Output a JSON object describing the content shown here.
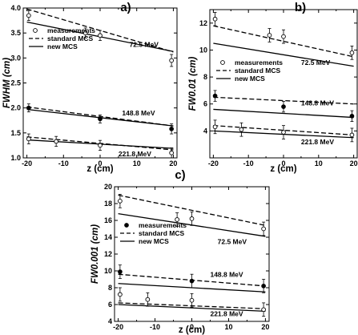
{
  "figure": {
    "panels": [
      "a)",
      "b)",
      "c)"
    ]
  },
  "chart_data": [
    {
      "type": "line",
      "panel_label": "a)",
      "xlabel": "z (cm)",
      "ylabel": "FWHM (cm)",
      "xlim": [
        -21,
        21
      ],
      "ylim": [
        1.0,
        4.0
      ],
      "xticks": [
        -20,
        -15,
        -10,
        -5,
        0,
        5,
        10,
        15,
        20
      ],
      "xticklabels": [
        "-20",
        "",
        "-10",
        "",
        "0",
        "",
        "10",
        "",
        "20"
      ],
      "yticks": [
        1.0,
        1.5,
        2.0,
        2.5,
        3.0,
        3.5,
        4.0
      ],
      "yticklabels": [
        "1.0",
        "1.5",
        "2.0",
        "2.5",
        "3.0",
        "3.5",
        "4.0"
      ],
      "legend": {
        "position": "upper-left",
        "entries": [
          {
            "label": "measurements",
            "marker": "open-circle"
          },
          {
            "label": "standard MCS",
            "style": "dashed"
          },
          {
            "label": "new MCS",
            "style": "solid"
          }
        ]
      },
      "annotations": [
        {
          "text": "72.5 MeV",
          "x": 8,
          "y": 3.22
        },
        {
          "text": "148.8 MeV",
          "x": 6,
          "y": 1.85
        },
        {
          "text": "221.8 MeV",
          "x": 5,
          "y": 1.03
        }
      ],
      "series": [
        {
          "name": "standard MCS",
          "energy": "72.5 MeV",
          "style": "dashed",
          "x": [
            -20,
            20
          ],
          "y": [
            3.98,
            3.12
          ]
        },
        {
          "name": "new MCS",
          "energy": "72.5 MeV",
          "style": "solid",
          "x": [
            -20,
            20
          ],
          "y": [
            3.72,
            3.13
          ]
        },
        {
          "name": "measurements",
          "energy": "72.5 MeV",
          "marker": "open",
          "x": [
            -19.5,
            -4,
            0,
            19.5
          ],
          "y": [
            3.85,
            3.5,
            3.45,
            2.95
          ],
          "err": [
            0.1,
            0.1,
            0.1,
            0.12
          ]
        },
        {
          "name": "standard MCS",
          "energy": "148.8 MeV",
          "style": "dashed",
          "x": [
            -20,
            20
          ],
          "y": [
            2.02,
            1.64
          ]
        },
        {
          "name": "new MCS",
          "energy": "148.8 MeV",
          "style": "solid",
          "x": [
            -20,
            20
          ],
          "y": [
            1.97,
            1.64
          ]
        },
        {
          "name": "measurements",
          "energy": "148.8 MeV",
          "marker": "filled",
          "x": [
            -19.5,
            0,
            19.5
          ],
          "y": [
            2.0,
            1.78,
            1.58
          ],
          "err": [
            0.08,
            0.08,
            0.1
          ]
        },
        {
          "name": "standard MCS",
          "energy": "221.8 MeV",
          "style": "dashed",
          "x": [
            -20,
            20
          ],
          "y": [
            1.42,
            1.16
          ]
        },
        {
          "name": "new MCS",
          "energy": "221.8 MeV",
          "style": "solid",
          "x": [
            -20,
            20
          ],
          "y": [
            1.36,
            1.19
          ]
        },
        {
          "name": "measurements",
          "energy": "221.8 MeV",
          "marker": "open",
          "x": [
            -19.5,
            -12,
            0,
            19.5
          ],
          "y": [
            1.38,
            1.33,
            1.25,
            1.1
          ],
          "err": [
            0.1,
            0.1,
            0.1,
            0.1
          ]
        }
      ]
    },
    {
      "type": "line",
      "panel_label": "b)",
      "xlabel": "z (cm)",
      "ylabel": "FW0.01 (cm)",
      "xlim": [
        -21,
        21
      ],
      "ylim": [
        2.0,
        13.0
      ],
      "xticks": [
        -20,
        -15,
        -10,
        -5,
        0,
        5,
        10,
        15,
        20
      ],
      "xticklabels": [
        "-20",
        "",
        "-10",
        "",
        "0",
        "",
        "10",
        "",
        "20"
      ],
      "yticks": [
        4,
        6,
        8,
        10,
        12
      ],
      "yticklabels": [
        "4",
        "6",
        "8",
        "10",
        "12"
      ],
      "legend": {
        "position": "upper-left",
        "entries": [
          {
            "label": "measurements",
            "marker": "open-circle"
          },
          {
            "label": "standard MCS",
            "style": "dashed"
          },
          {
            "label": "new MCS",
            "style": "solid"
          }
        ]
      },
      "annotations": [
        {
          "text": "72.5 MeV",
          "x": 5,
          "y": 8.9
        },
        {
          "text": "148.8 MeV",
          "x": 5,
          "y": 5.9
        },
        {
          "text": "221.8 MeV",
          "x": 5,
          "y": 3.0
        }
      ],
      "series": [
        {
          "name": "standard MCS",
          "energy": "72.5 MeV",
          "style": "dashed",
          "x": [
            -20,
            20
          ],
          "y": [
            11.8,
            9.5
          ]
        },
        {
          "name": "new MCS",
          "energy": "72.5 MeV",
          "style": "solid",
          "x": [
            -20,
            20
          ],
          "y": [
            10.5,
            8.8
          ]
        },
        {
          "name": "measurements",
          "energy": "72.5 MeV",
          "marker": "open",
          "x": [
            -19.5,
            -4,
            0,
            19.5
          ],
          "y": [
            12.3,
            11.1,
            11.0,
            9.8
          ],
          "err": [
            0.5,
            0.5,
            0.5,
            0.5
          ]
        },
        {
          "name": "standard MCS",
          "energy": "148.8 MeV",
          "style": "dashed",
          "x": [
            -20,
            20
          ],
          "y": [
            6.5,
            6.0
          ]
        },
        {
          "name": "new MCS",
          "energy": "148.8 MeV",
          "style": "solid",
          "x": [
            -20,
            20
          ],
          "y": [
            5.6,
            5.0
          ]
        },
        {
          "name": "measurements",
          "energy": "148.8 MeV",
          "marker": "filled",
          "x": [
            -19.5,
            0,
            19.5
          ],
          "y": [
            6.6,
            5.8,
            5.1
          ],
          "err": [
            0.4,
            0.4,
            0.4
          ]
        },
        {
          "name": "standard MCS",
          "energy": "221.8 MeV",
          "style": "dashed",
          "x": [
            -20,
            20
          ],
          "y": [
            4.4,
            3.7
          ]
        },
        {
          "name": "new MCS",
          "energy": "221.8 MeV",
          "style": "solid",
          "x": [
            -20,
            20
          ],
          "y": [
            4.0,
            3.5
          ]
        },
        {
          "name": "measurements",
          "energy": "221.8 MeV",
          "marker": "open",
          "x": [
            -19.5,
            -12,
            0,
            19.5
          ],
          "y": [
            4.3,
            4.1,
            3.9,
            3.7
          ],
          "err": [
            0.5,
            0.5,
            0.5,
            0.5
          ]
        }
      ]
    },
    {
      "type": "line",
      "panel_label": "c)",
      "xlabel": "z (cm)",
      "ylabel": "FW0.001 (cm)",
      "xlim": [
        -21,
        21
      ],
      "ylim": [
        4.0,
        20.0
      ],
      "xticks": [
        -20,
        -15,
        -10,
        -5,
        0,
        5,
        10,
        15,
        20
      ],
      "xticklabels": [
        "-20",
        "",
        "-10",
        "",
        "0",
        "",
        "10",
        "",
        "20"
      ],
      "yticks": [
        4,
        6,
        8,
        10,
        12,
        14,
        16,
        18,
        20
      ],
      "yticklabels": [
        "4",
        "6",
        "8",
        "10",
        "12",
        "14",
        "16",
        "18",
        "20"
      ],
      "legend": {
        "position": "upper-left",
        "entries": [
          {
            "label": "measurements",
            "marker": "filled-circle"
          },
          {
            "label": "standard MCS",
            "style": "dashed"
          },
          {
            "label": "new MCS",
            "style": "solid"
          }
        ]
      },
      "annotations": [
        {
          "text": "72.5 MeV",
          "x": 7,
          "y": 13.2
        },
        {
          "text": "148.8 MeV",
          "x": 5,
          "y": 9.3
        },
        {
          "text": "221.8 MeV",
          "x": 5,
          "y": 4.6
        }
      ],
      "series": [
        {
          "name": "standard MCS",
          "energy": "72.5 MeV",
          "style": "dashed",
          "x": [
            -20,
            20
          ],
          "y": [
            19.0,
            15.4
          ]
        },
        {
          "name": "new MCS",
          "energy": "72.5 MeV",
          "style": "solid",
          "x": [
            -20,
            20
          ],
          "y": [
            16.8,
            14.1
          ]
        },
        {
          "name": "measurements",
          "energy": "72.5 MeV",
          "marker": "open",
          "x": [
            -19.5,
            -4,
            0,
            19.5
          ],
          "y": [
            18.3,
            16.1,
            16.2,
            15.0
          ],
          "err": [
            0.8,
            0.8,
            0.8,
            0.8
          ]
        },
        {
          "name": "standard MCS",
          "energy": "148.8 MeV",
          "style": "dashed",
          "x": [
            -20,
            20
          ],
          "y": [
            9.6,
            8.2
          ]
        },
        {
          "name": "new MCS",
          "energy": "148.8 MeV",
          "style": "solid",
          "x": [
            -20,
            20
          ],
          "y": [
            8.5,
            7.5
          ]
        },
        {
          "name": "measurements",
          "energy": "148.8 MeV",
          "marker": "filled",
          "x": [
            -19.5,
            0,
            19.5
          ],
          "y": [
            9.9,
            8.8,
            8.2
          ],
          "err": [
            0.8,
            0.8,
            0.8
          ]
        },
        {
          "name": "standard MCS",
          "energy": "221.8 MeV",
          "style": "dashed",
          "x": [
            -20,
            20
          ],
          "y": [
            6.2,
            5.5
          ]
        },
        {
          "name": "new MCS",
          "energy": "221.8 MeV",
          "style": "solid",
          "x": [
            -20,
            20
          ],
          "y": [
            6.0,
            5.2
          ]
        },
        {
          "name": "measurements",
          "energy": "221.8 MeV",
          "marker": "open",
          "x": [
            -19.5,
            -12,
            0,
            19.5
          ],
          "y": [
            7.2,
            6.6,
            6.5,
            5.4
          ],
          "err": [
            0.8,
            0.8,
            0.8,
            0.8
          ]
        }
      ]
    }
  ]
}
